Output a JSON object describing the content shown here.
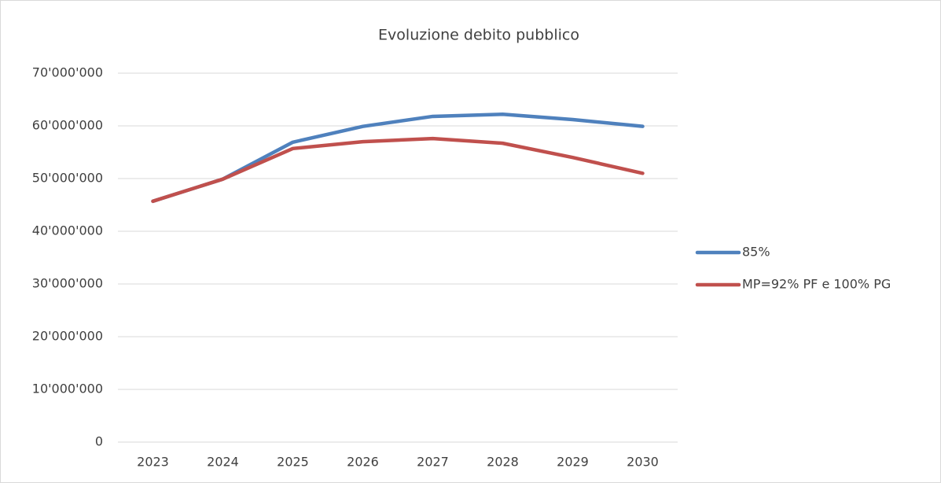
{
  "chart_data": {
    "type": "line",
    "title": "Evoluzione debito pubblico",
    "categories": [
      "2023",
      "2024",
      "2025",
      "2026",
      "2027",
      "2028",
      "2029",
      "2030"
    ],
    "series": [
      {
        "name": "85%",
        "color": "#4f81bd",
        "values": [
          45700000,
          49900000,
          56900000,
          59900000,
          61800000,
          62200000,
          61200000,
          59900000
        ]
      },
      {
        "name": "MP=92% PF e 100% PG",
        "color": "#c0504d",
        "values": [
          45700000,
          49900000,
          55700000,
          57000000,
          57600000,
          56700000,
          54000000,
          51000000
        ]
      }
    ],
    "ylim": [
      0,
      70000000
    ],
    "yticks": [
      0,
      {
        "value": 10000000,
        "label": "10'000'000"
      },
      {
        "value": 20000000,
        "label": "20'000'000"
      },
      {
        "value": 30000000,
        "label": "30'000'000"
      },
      {
        "value": 40000000,
        "label": "40'000'000"
      },
      {
        "value": 50000000,
        "label": "50'000'000"
      },
      {
        "value": 60000000,
        "label": "60'000'000"
      },
      {
        "value": 70000000,
        "label": "70'000'000"
      }
    ],
    "grid": true,
    "legend": "right"
  }
}
